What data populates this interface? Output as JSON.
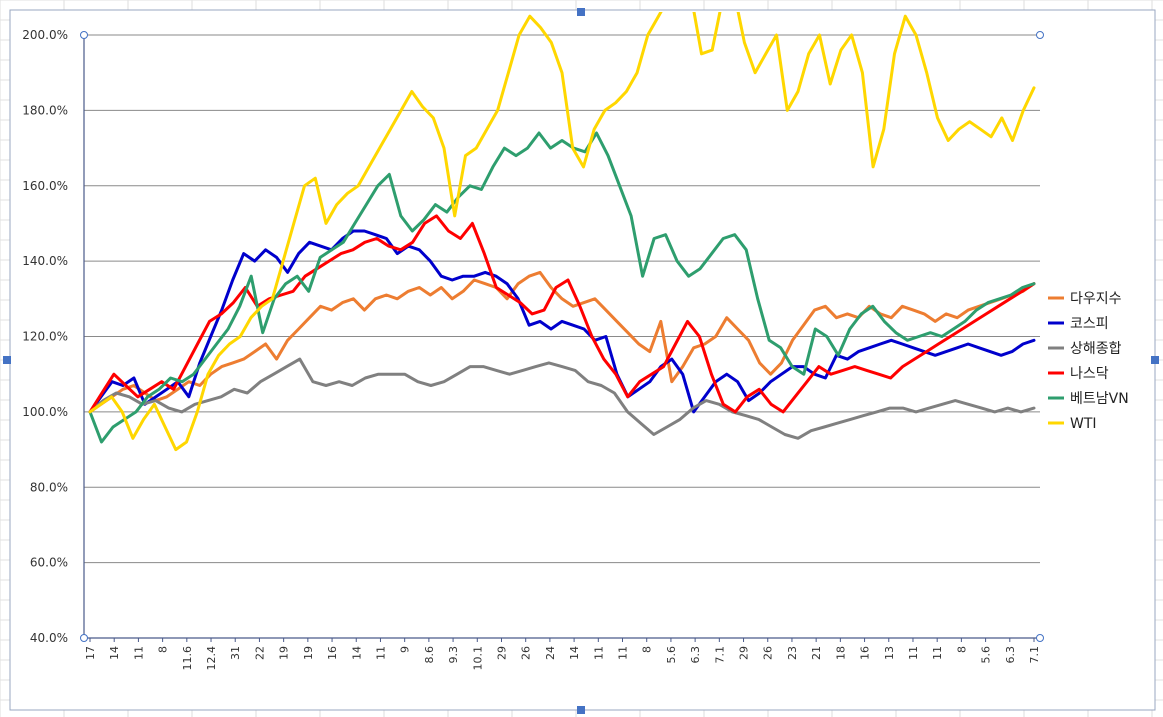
{
  "chart_data": {
    "type": "line",
    "title": "",
    "xlabel": "",
    "ylabel": "",
    "ylim": [
      40,
      200
    ],
    "y_ticks": [
      "40.0%",
      "60.0%",
      "80.0%",
      "100.0%",
      "120.0%",
      "140.0%",
      "160.0%",
      "180.0%",
      "200.0%"
    ],
    "x_tick_labels": [
      "17",
      "14",
      "11",
      "8",
      "11.6",
      "12.4",
      "31",
      "22",
      "19",
      "19",
      "16",
      "14",
      "11",
      "9",
      "8.6",
      "9.3",
      "10.1",
      "29",
      "26",
      "24",
      "14",
      "11",
      "11",
      "8",
      "5.6",
      "6.3",
      "7.1",
      "29",
      "26",
      "23",
      "21",
      "18",
      "16",
      "13",
      "11",
      "11",
      "8",
      "5.6",
      "6.3",
      "7.1"
    ],
    "grid": true,
    "legend_position": "right",
    "series": [
      {
        "name": "다우지수",
        "color": "#ED7D31",
        "values": [
          100,
          102,
          104,
          106,
          107,
          105,
          103,
          104,
          106,
          108,
          107,
          110,
          112,
          113,
          114,
          116,
          118,
          114,
          119,
          122,
          125,
          128,
          127,
          129,
          130,
          127,
          130,
          131,
          130,
          132,
          133,
          131,
          133,
          130,
          132,
          135,
          134,
          133,
          130,
          134,
          136,
          137,
          133,
          130,
          128,
          129,
          130,
          127,
          124,
          121,
          118,
          116,
          124,
          108,
          112,
          117,
          118,
          120,
          125,
          122,
          119,
          113,
          110,
          113,
          119,
          123,
          127,
          128,
          125,
          126,
          125,
          128,
          126,
          125,
          128,
          127,
          126,
          124,
          126,
          125,
          127,
          128,
          129,
          130,
          131,
          132,
          134
        ]
      },
      {
        "name": "코스피",
        "color": "#0000CC",
        "values": [
          100,
          104,
          108,
          107,
          109,
          102,
          104,
          106,
          108,
          104,
          113,
          120,
          127,
          135,
          142,
          140,
          143,
          141,
          137,
          142,
          145,
          144,
          143,
          146,
          148,
          148,
          147,
          146,
          142,
          144,
          143,
          140,
          136,
          135,
          136,
          136,
          137,
          136,
          134,
          130,
          123,
          124,
          122,
          124,
          123,
          122,
          119,
          120,
          110,
          104,
          106,
          108,
          112,
          114,
          110,
          100,
          104,
          108,
          110,
          108,
          103,
          105,
          108,
          110,
          112,
          112,
          110,
          109,
          115,
          114,
          116,
          117,
          118,
          119,
          118,
          117,
          116,
          115,
          116,
          117,
          118,
          117,
          116,
          115,
          116,
          118,
          119
        ]
      },
      {
        "name": "상해종합",
        "color": "#808080",
        "values": [
          100,
          103,
          105,
          104,
          102,
          103,
          101,
          100,
          102,
          103,
          104,
          106,
          105,
          108,
          110,
          112,
          114,
          108,
          107,
          108,
          107,
          109,
          110,
          110,
          110,
          108,
          107,
          108,
          110,
          112,
          112,
          111,
          110,
          111,
          112,
          113,
          112,
          111,
          108,
          107,
          105,
          100,
          97,
          94,
          96,
          98,
          101,
          103,
          102,
          100,
          99,
          98,
          96,
          94,
          93,
          95,
          96,
          97,
          98,
          99,
          100,
          101,
          101,
          100,
          101,
          102,
          103,
          102,
          101,
          100,
          101,
          100,
          101
        ]
      },
      {
        "name": "나스닥",
        "color": "#FF0000",
        "values": [
          100,
          105,
          110,
          107,
          104,
          106,
          108,
          106,
          112,
          118,
          124,
          126,
          129,
          133,
          128,
          130,
          131,
          132,
          136,
          138,
          140,
          142,
          143,
          145,
          146,
          144,
          143,
          145,
          150,
          152,
          148,
          146,
          150,
          142,
          133,
          131,
          129,
          126,
          127,
          133,
          135,
          128,
          120,
          114,
          110,
          104,
          108,
          110,
          112,
          118,
          124,
          120,
          110,
          102,
          100,
          104,
          106,
          102,
          100,
          104,
          108,
          112,
          110,
          111,
          112,
          111,
          110,
          109,
          112,
          114,
          116,
          118,
          120,
          122,
          124,
          126,
          128,
          130,
          132,
          134
        ]
      },
      {
        "name": "베트남VN",
        "color": "#2E9E6E",
        "values": [
          100,
          92,
          96,
          98,
          100,
          104,
          106,
          109,
          108,
          110,
          114,
          118,
          122,
          128,
          136,
          121,
          130,
          134,
          136,
          132,
          141,
          143,
          145,
          150,
          155,
          160,
          163,
          152,
          148,
          151,
          155,
          153,
          157,
          160,
          159,
          165,
          170,
          168,
          170,
          174,
          170,
          172,
          170,
          169,
          174,
          168,
          160,
          152,
          136,
          146,
          147,
          140,
          136,
          138,
          142,
          146,
          147,
          143,
          130,
          119,
          117,
          112,
          110,
          122,
          120,
          115,
          122,
          126,
          128,
          124,
          121,
          119,
          120,
          121,
          120,
          122,
          124,
          127,
          129,
          130,
          131,
          133,
          134
        ]
      },
      {
        "name": "WTI",
        "color": "#FFD700",
        "values": [
          100,
          102,
          104,
          100,
          93,
          98,
          102,
          96,
          90,
          92,
          100,
          110,
          115,
          118,
          120,
          125,
          128,
          130,
          140,
          150,
          160,
          162,
          150,
          155,
          158,
          160,
          165,
          170,
          175,
          180,
          185,
          181,
          178,
          170,
          152,
          168,
          170,
          175,
          180,
          190,
          200,
          205,
          202,
          198,
          190,
          170,
          165,
          175,
          180,
          182,
          185,
          190,
          200,
          205,
          210,
          212,
          211,
          195,
          196,
          210,
          212,
          198,
          190,
          195,
          200,
          180,
          185,
          195,
          200,
          187,
          196,
          200,
          190,
          165,
          175,
          195,
          205,
          200,
          190,
          178,
          172,
          175,
          177,
          175,
          173,
          178,
          172,
          180,
          186
        ]
      }
    ]
  }
}
